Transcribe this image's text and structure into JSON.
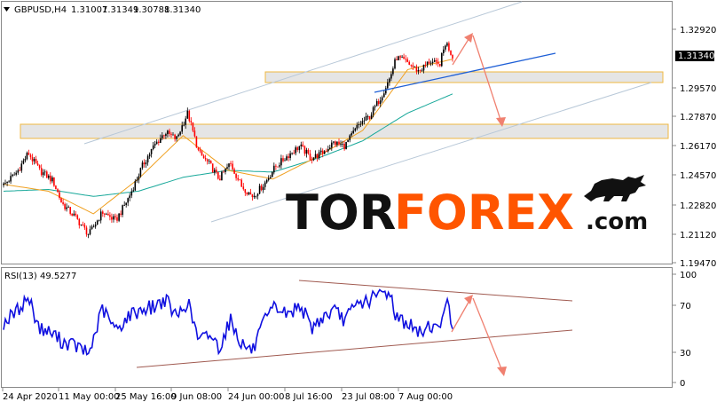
{
  "header": {
    "symbol": "GBPUSD,H4",
    "open": "1.31007",
    "high": "1.31349",
    "low": "1.30788",
    "close": "1.31340"
  },
  "chart_data": [
    {
      "type": "line",
      "title": "GBPUSD,H4",
      "subtype": "candlestick",
      "grid": false,
      "yticks": [
        1.3292,
        1.2957,
        1.2787,
        1.2617,
        1.2457,
        1.2282,
        1.2112,
        1.1947
      ],
      "ytick_labels": [
        "1.32920",
        "1.29570",
        "1.27870",
        "1.26170",
        "1.24570",
        "1.22820",
        "1.21120",
        "1.19470"
      ],
      "ylim": [
        1.1947,
        1.3385
      ],
      "current_price": 1.3134,
      "current_price_label": "1.31340",
      "x_labels": [
        "24 Apr 2020",
        "11 May 00:00",
        "25 May 16:00",
        "9 Jun 08:00",
        "24 Jun 00:00",
        "8 Jul 16:00",
        "23 Jul 08:00",
        "7 Aug 00:00"
      ],
      "price_close_series": [
        {
          "x": 0,
          "y": 1.2395
        },
        {
          "x": 0.03,
          "y": 1.247
        },
        {
          "x": 0.055,
          "y": 1.258
        },
        {
          "x": 0.08,
          "y": 1.248
        },
        {
          "x": 0.11,
          "y": 1.242
        },
        {
          "x": 0.13,
          "y": 1.229
        },
        {
          "x": 0.16,
          "y": 1.221
        },
        {
          "x": 0.19,
          "y": 1.211
        },
        {
          "x": 0.22,
          "y": 1.224
        },
        {
          "x": 0.25,
          "y": 1.219
        },
        {
          "x": 0.28,
          "y": 1.233
        },
        {
          "x": 0.31,
          "y": 1.251
        },
        {
          "x": 0.335,
          "y": 1.262
        },
        {
          "x": 0.36,
          "y": 1.27
        },
        {
          "x": 0.385,
          "y": 1.266
        },
        {
          "x": 0.41,
          "y": 1.281
        },
        {
          "x": 0.435,
          "y": 1.258
        },
        {
          "x": 0.46,
          "y": 1.251
        },
        {
          "x": 0.48,
          "y": 1.243
        },
        {
          "x": 0.505,
          "y": 1.252
        },
        {
          "x": 0.53,
          "y": 1.239
        },
        {
          "x": 0.555,
          "y": 1.233
        },
        {
          "x": 0.58,
          "y": 1.24
        },
        {
          "x": 0.605,
          "y": 1.25
        },
        {
          "x": 0.635,
          "y": 1.257
        },
        {
          "x": 0.66,
          "y": 1.262
        },
        {
          "x": 0.685,
          "y": 1.255
        },
        {
          "x": 0.71,
          "y": 1.258
        },
        {
          "x": 0.735,
          "y": 1.264
        },
        {
          "x": 0.76,
          "y": 1.262
        },
        {
          "x": 0.79,
          "y": 1.274
        },
        {
          "x": 0.815,
          "y": 1.279
        },
        {
          "x": 0.84,
          "y": 1.29
        },
        {
          "x": 0.86,
          "y": 1.301
        },
        {
          "x": 0.875,
          "y": 1.313
        },
        {
          "x": 0.9,
          "y": 1.31
        },
        {
          "x": 0.925,
          "y": 1.305
        },
        {
          "x": 0.95,
          "y": 1.311
        },
        {
          "x": 0.97,
          "y": 1.308
        },
        {
          "x": 0.985,
          "y": 1.322
        },
        {
          "x": 1.0,
          "y": 1.3134
        }
      ],
      "ma_slow_series": [
        {
          "x": 0,
          "y": 1.236
        },
        {
          "x": 0.1,
          "y": 1.237
        },
        {
          "x": 0.2,
          "y": 1.233
        },
        {
          "x": 0.3,
          "y": 1.236
        },
        {
          "x": 0.4,
          "y": 1.244
        },
        {
          "x": 0.5,
          "y": 1.248
        },
        {
          "x": 0.6,
          "y": 1.247
        },
        {
          "x": 0.7,
          "y": 1.255
        },
        {
          "x": 0.8,
          "y": 1.265
        },
        {
          "x": 0.9,
          "y": 1.281
        },
        {
          "x": 1.0,
          "y": 1.292
        }
      ],
      "ma_fast_series": [
        {
          "x": 0,
          "y": 1.24
        },
        {
          "x": 0.1,
          "y": 1.236
        },
        {
          "x": 0.2,
          "y": 1.223
        },
        {
          "x": 0.3,
          "y": 1.243
        },
        {
          "x": 0.4,
          "y": 1.268
        },
        {
          "x": 0.5,
          "y": 1.248
        },
        {
          "x": 0.6,
          "y": 1.243
        },
        {
          "x": 0.7,
          "y": 1.256
        },
        {
          "x": 0.8,
          "y": 1.271
        },
        {
          "x": 0.9,
          "y": 1.306
        },
        {
          "x": 1.0,
          "y": 1.312
        }
      ]
    },
    {
      "type": "line",
      "title": "RSI(13) 49.5277",
      "name": "RSI(13)",
      "value_label": "49.5277",
      "yticks": [
        100,
        70,
        30,
        0
      ],
      "ylim": [
        0,
        100
      ],
      "grid": false,
      "rsi_series": [
        {
          "x": 0,
          "y": 55
        },
        {
          "x": 0.03,
          "y": 66
        },
        {
          "x": 0.055,
          "y": 79
        },
        {
          "x": 0.08,
          "y": 50
        },
        {
          "x": 0.11,
          "y": 45
        },
        {
          "x": 0.13,
          "y": 38
        },
        {
          "x": 0.16,
          "y": 34
        },
        {
          "x": 0.19,
          "y": 26
        },
        {
          "x": 0.22,
          "y": 68
        },
        {
          "x": 0.25,
          "y": 48
        },
        {
          "x": 0.28,
          "y": 62
        },
        {
          "x": 0.31,
          "y": 68
        },
        {
          "x": 0.335,
          "y": 70
        },
        {
          "x": 0.36,
          "y": 77
        },
        {
          "x": 0.385,
          "y": 60
        },
        {
          "x": 0.41,
          "y": 75
        },
        {
          "x": 0.435,
          "y": 38
        },
        {
          "x": 0.46,
          "y": 45
        },
        {
          "x": 0.48,
          "y": 32
        },
        {
          "x": 0.505,
          "y": 58
        },
        {
          "x": 0.53,
          "y": 36
        },
        {
          "x": 0.555,
          "y": 29
        },
        {
          "x": 0.58,
          "y": 55
        },
        {
          "x": 0.605,
          "y": 70
        },
        {
          "x": 0.635,
          "y": 62
        },
        {
          "x": 0.66,
          "y": 73
        },
        {
          "x": 0.685,
          "y": 50
        },
        {
          "x": 0.71,
          "y": 60
        },
        {
          "x": 0.735,
          "y": 66
        },
        {
          "x": 0.76,
          "y": 58
        },
        {
          "x": 0.79,
          "y": 73
        },
        {
          "x": 0.815,
          "y": 76
        },
        {
          "x": 0.84,
          "y": 82
        },
        {
          "x": 0.86,
          "y": 84
        },
        {
          "x": 0.875,
          "y": 60
        },
        {
          "x": 0.9,
          "y": 55
        },
        {
          "x": 0.925,
          "y": 45
        },
        {
          "x": 0.95,
          "y": 54
        },
        {
          "x": 0.97,
          "y": 47
        },
        {
          "x": 0.985,
          "y": 79
        },
        {
          "x": 1.0,
          "y": 49.5
        }
      ]
    }
  ],
  "colors": {
    "background": "#ffffff",
    "text": "#000000",
    "bull": "#000000",
    "bear": "#ff0000",
    "ma_slow": "#18a89a",
    "ma_fast": "#f0a020",
    "channel": "#b8c8d8",
    "trendline": "#1e5fd6",
    "arrow": "#f08070",
    "zone_fill": "#dcdcdc",
    "zone_border": "#f0b840",
    "rsi_line": "#1010e0",
    "rsi_trend": "#a05a50",
    "axis": "#888888",
    "price_tag_bg": "#000000",
    "price_tag_text": "#ffffff",
    "brand_dark": "#111111",
    "brand_accent": "#ff5500"
  },
  "watermark": {
    "part1": "TOR",
    "part2": "FOREX",
    "part3": ".com",
    "logo_icon": "bull-icon"
  }
}
